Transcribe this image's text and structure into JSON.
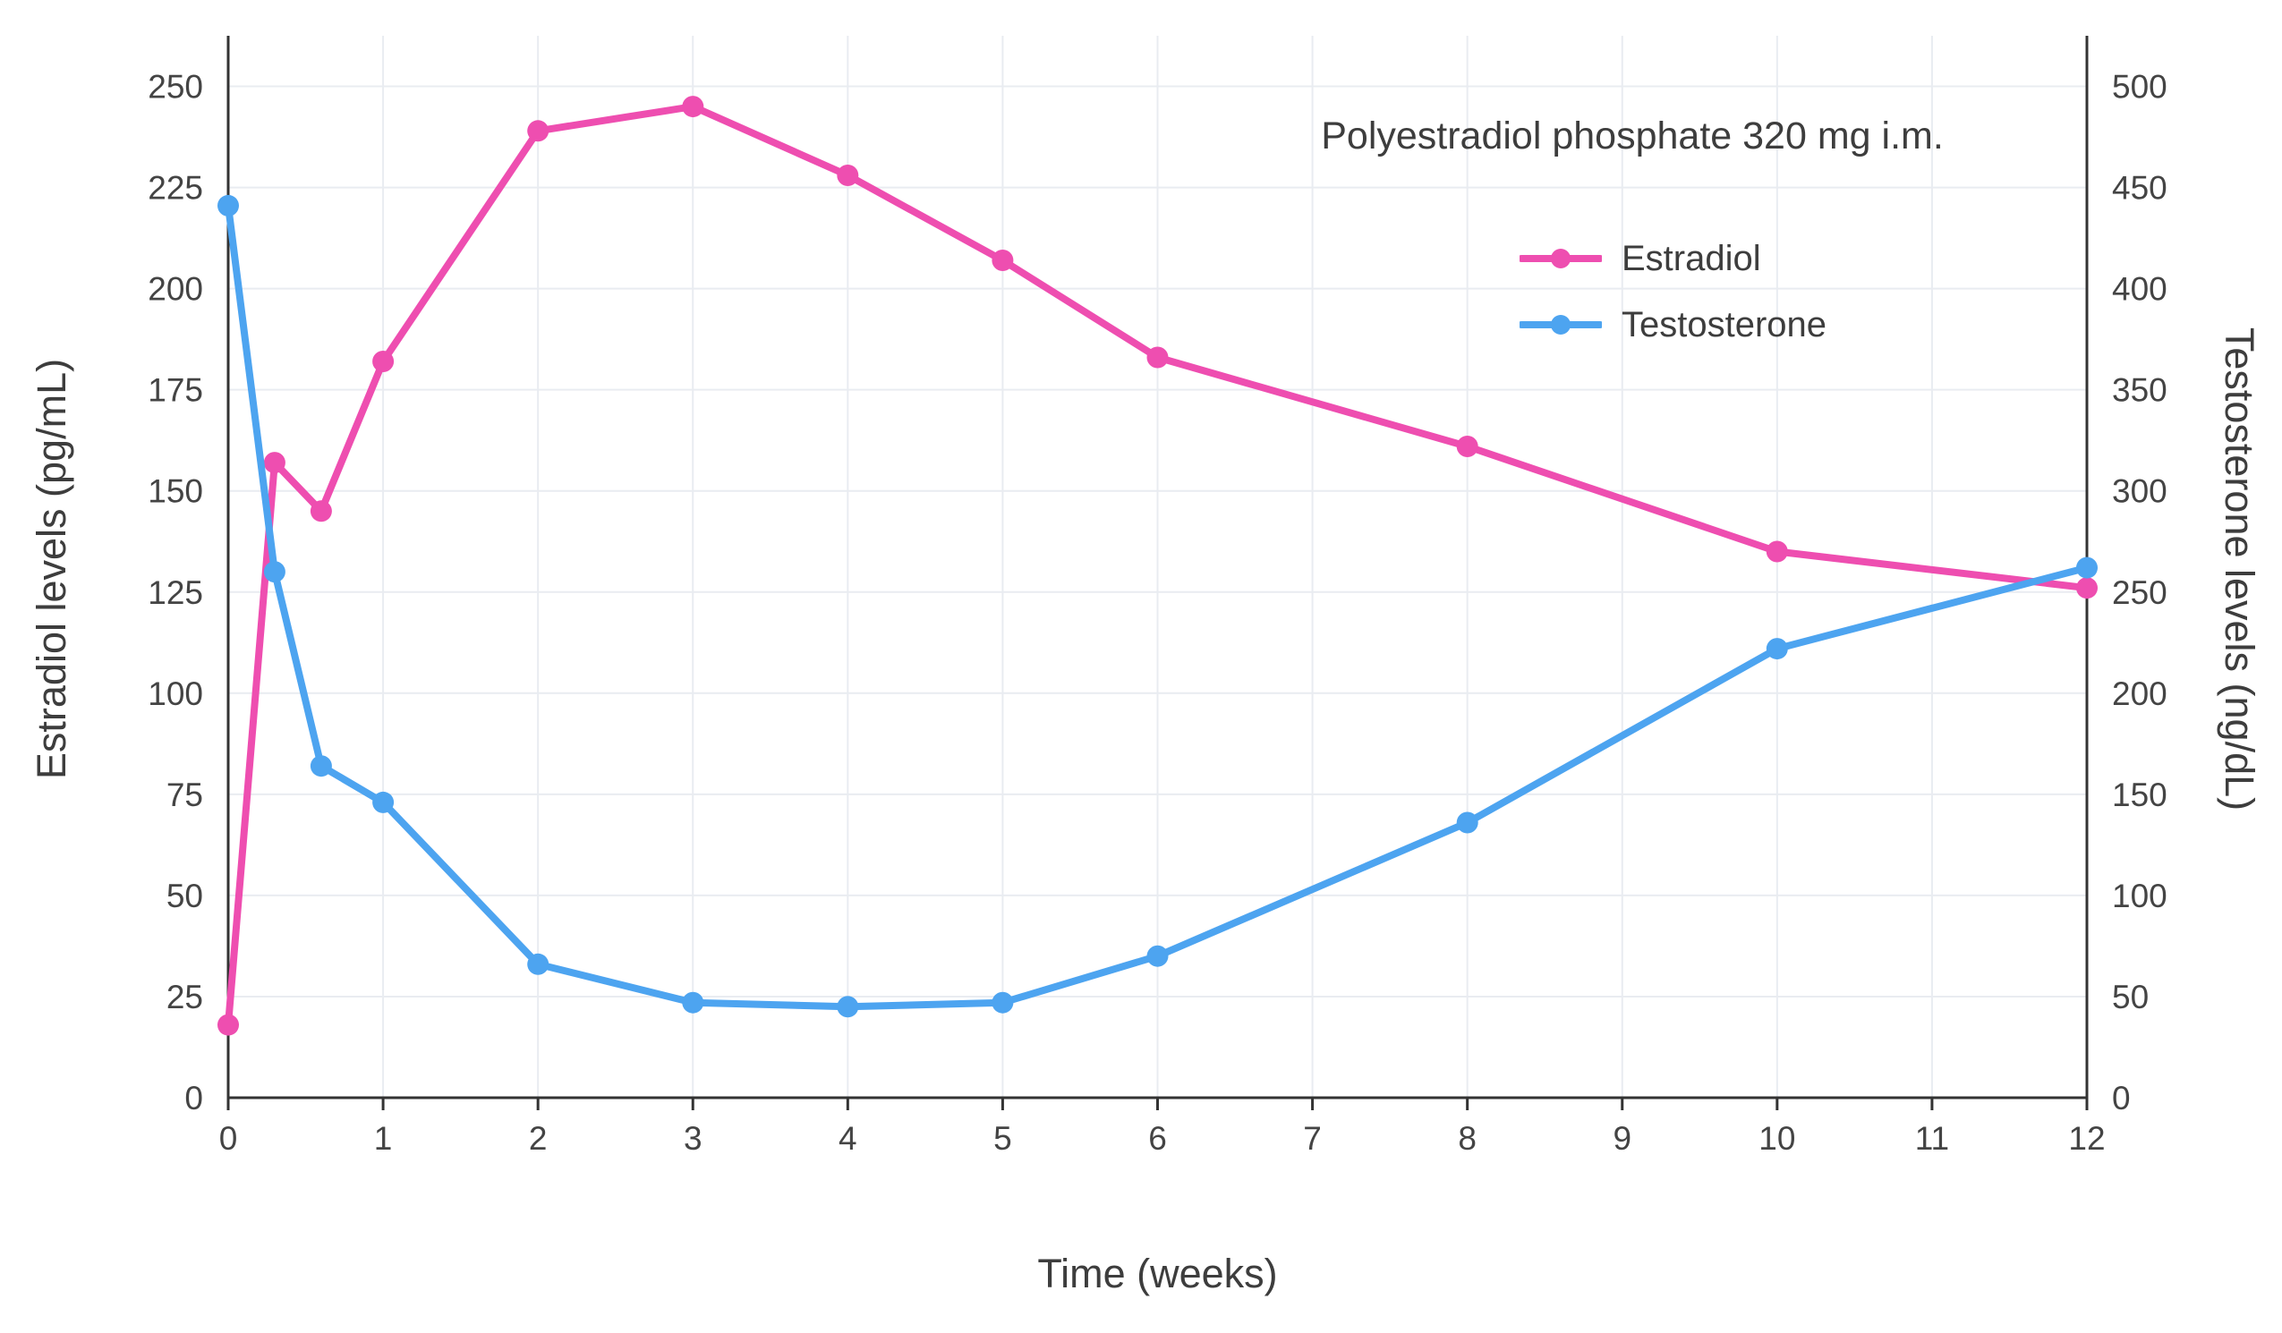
{
  "chart_data": {
    "type": "line",
    "annotation": "Polyestradiol phosphate 320 mg i.m.",
    "xlabel": "Time (weeks)",
    "ylabel_left": "Estradiol levels (pg/mL)",
    "ylabel_right": "Testosterone levels (ng/dL)",
    "x": [
      0,
      0.3,
      0.6,
      1,
      2,
      3,
      4,
      5,
      6,
      8,
      10,
      12
    ],
    "series": [
      {
        "name": "Estradiol",
        "axis": "left",
        "color": "#ee4eb0",
        "values": [
          18,
          157,
          145,
          182,
          239,
          245,
          228,
          207,
          183,
          161,
          135,
          126
        ]
      },
      {
        "name": "Testosterone",
        "axis": "right",
        "color": "#4da4f0",
        "values": [
          441,
          260,
          164,
          146,
          66,
          47,
          45,
          47,
          70,
          136,
          222,
          262
        ]
      }
    ],
    "x_ticks": [
      0,
      1,
      2,
      3,
      4,
      5,
      6,
      7,
      8,
      9,
      10,
      11,
      12
    ],
    "y_left_ticks": [
      0,
      25,
      50,
      75,
      100,
      125,
      150,
      175,
      200,
      225,
      250
    ],
    "y_right_ticks": [
      0,
      50,
      100,
      150,
      200,
      250,
      300,
      350,
      400,
      450,
      500
    ],
    "x_range": [
      0,
      12
    ],
    "y_left_range": [
      0,
      262.5
    ],
    "y_right_range": [
      0,
      525
    ],
    "grid": true,
    "legend_position": "top-right"
  }
}
